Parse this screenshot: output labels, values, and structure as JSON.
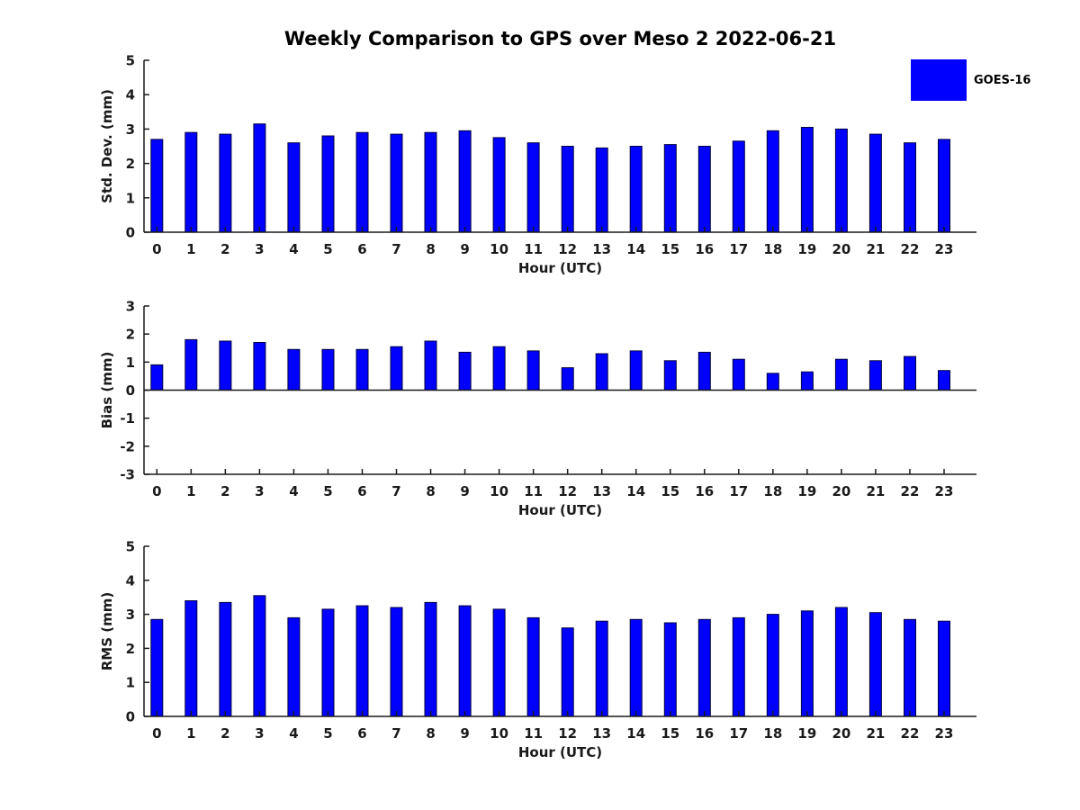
{
  "title": "Weekly Comparison to GPS over Meso 2 2022-06-21",
  "legend": {
    "label": "GOES-16",
    "color": "#0000ff",
    "position": "top-right"
  },
  "colors": {
    "bar_fill": "#0000ff",
    "bar_edge": "#000040",
    "axis": "#1a1a1a",
    "background": "#ffffff"
  },
  "chart_data": [
    {
      "type": "bar",
      "name": "std-dev",
      "series_name": "GOES-16",
      "ylabel": "Std. Dev. (mm)",
      "xlabel": "Hour (UTC)",
      "ylim": [
        0,
        5
      ],
      "yticks": [
        0,
        1,
        2,
        3,
        4,
        5
      ],
      "grid": false,
      "categories": [
        "0",
        "1",
        "2",
        "3",
        "4",
        "5",
        "6",
        "7",
        "8",
        "9",
        "10",
        "11",
        "12",
        "13",
        "14",
        "15",
        "16",
        "17",
        "18",
        "19",
        "20",
        "21",
        "22",
        "23"
      ],
      "values": [
        2.7,
        2.9,
        2.85,
        3.15,
        2.6,
        2.8,
        2.9,
        2.85,
        2.9,
        2.95,
        2.75,
        2.6,
        2.5,
        2.45,
        2.5,
        2.55,
        2.5,
        2.65,
        2.95,
        3.05,
        3.0,
        2.85,
        2.6,
        2.7
      ]
    },
    {
      "type": "bar",
      "name": "bias",
      "series_name": "GOES-16",
      "ylabel": "Bias (mm)",
      "xlabel": "Hour (UTC)",
      "ylim": [
        -3,
        3
      ],
      "yticks": [
        -3,
        -2,
        -1,
        0,
        1,
        2,
        3
      ],
      "grid": false,
      "zero_line": true,
      "categories": [
        "0",
        "1",
        "2",
        "3",
        "4",
        "5",
        "6",
        "7",
        "8",
        "9",
        "10",
        "11",
        "12",
        "13",
        "14",
        "15",
        "16",
        "17",
        "18",
        "19",
        "20",
        "21",
        "22",
        "23"
      ],
      "values": [
        0.9,
        1.8,
        1.75,
        1.7,
        1.45,
        1.45,
        1.45,
        1.55,
        1.75,
        1.35,
        1.55,
        1.4,
        0.8,
        1.3,
        1.4,
        1.05,
        1.35,
        1.1,
        0.6,
        0.65,
        1.1,
        1.05,
        1.2,
        0.7
      ]
    },
    {
      "type": "bar",
      "name": "rms",
      "series_name": "GOES-16",
      "ylabel": "RMS (mm)",
      "xlabel": "Hour (UTC)",
      "ylim": [
        0,
        5
      ],
      "yticks": [
        0,
        1,
        2,
        3,
        4,
        5
      ],
      "grid": false,
      "categories": [
        "0",
        "1",
        "2",
        "3",
        "4",
        "5",
        "6",
        "7",
        "8",
        "9",
        "10",
        "11",
        "12",
        "13",
        "14",
        "15",
        "16",
        "17",
        "18",
        "19",
        "20",
        "21",
        "22",
        "23"
      ],
      "values": [
        2.85,
        3.4,
        3.35,
        3.55,
        2.9,
        3.15,
        3.25,
        3.2,
        3.35,
        3.25,
        3.15,
        2.9,
        2.6,
        2.8,
        2.85,
        2.75,
        2.85,
        2.9,
        3.0,
        3.1,
        3.2,
        3.05,
        2.85,
        2.8
      ]
    }
  ]
}
